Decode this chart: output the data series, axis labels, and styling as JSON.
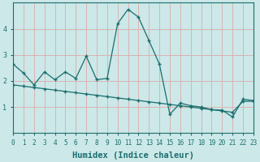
{
  "xlabel": "Humidex (Indice chaleur)",
  "bg_color": "#cce8e8",
  "grid_color_major": "#e8b8b8",
  "grid_color_minor": "#dde8e8",
  "line_color": "#1a6e6e",
  "series1_x": [
    0,
    1,
    2,
    3,
    4,
    5,
    6,
    7,
    8,
    9,
    10,
    11,
    12,
    13,
    14,
    15,
    16,
    17,
    18,
    19,
    20,
    21,
    22,
    23
  ],
  "series1_y": [
    2.65,
    2.3,
    1.85,
    2.35,
    2.05,
    2.35,
    2.1,
    2.95,
    2.05,
    2.1,
    4.2,
    4.75,
    4.45,
    3.55,
    2.65,
    0.72,
    1.15,
    1.05,
    1.0,
    0.9,
    0.88,
    0.62,
    1.3,
    1.25
  ],
  "series2_x": [
    0,
    1,
    2,
    3,
    4,
    5,
    6,
    7,
    8,
    9,
    10,
    11,
    12,
    13,
    14,
    15,
    16,
    17,
    18,
    19,
    20,
    21,
    22,
    23
  ],
  "series2_y": [
    1.85,
    1.8,
    1.75,
    1.7,
    1.65,
    1.6,
    1.55,
    1.5,
    1.45,
    1.4,
    1.35,
    1.3,
    1.25,
    1.2,
    1.15,
    1.1,
    1.05,
    1.0,
    0.95,
    0.9,
    0.85,
    0.8,
    1.22,
    1.22
  ],
  "ylim": [
    0,
    5
  ],
  "xlim": [
    0,
    23
  ],
  "yticks": [
    1,
    2,
    3,
    4
  ],
  "xticks": [
    0,
    1,
    2,
    3,
    4,
    5,
    6,
    7,
    8,
    9,
    10,
    11,
    12,
    13,
    14,
    15,
    16,
    17,
    18,
    19,
    20,
    21,
    22,
    23
  ],
  "tick_color": "#1a6e6e",
  "tick_fontsize": 5.5,
  "xlabel_fontsize": 7.5
}
